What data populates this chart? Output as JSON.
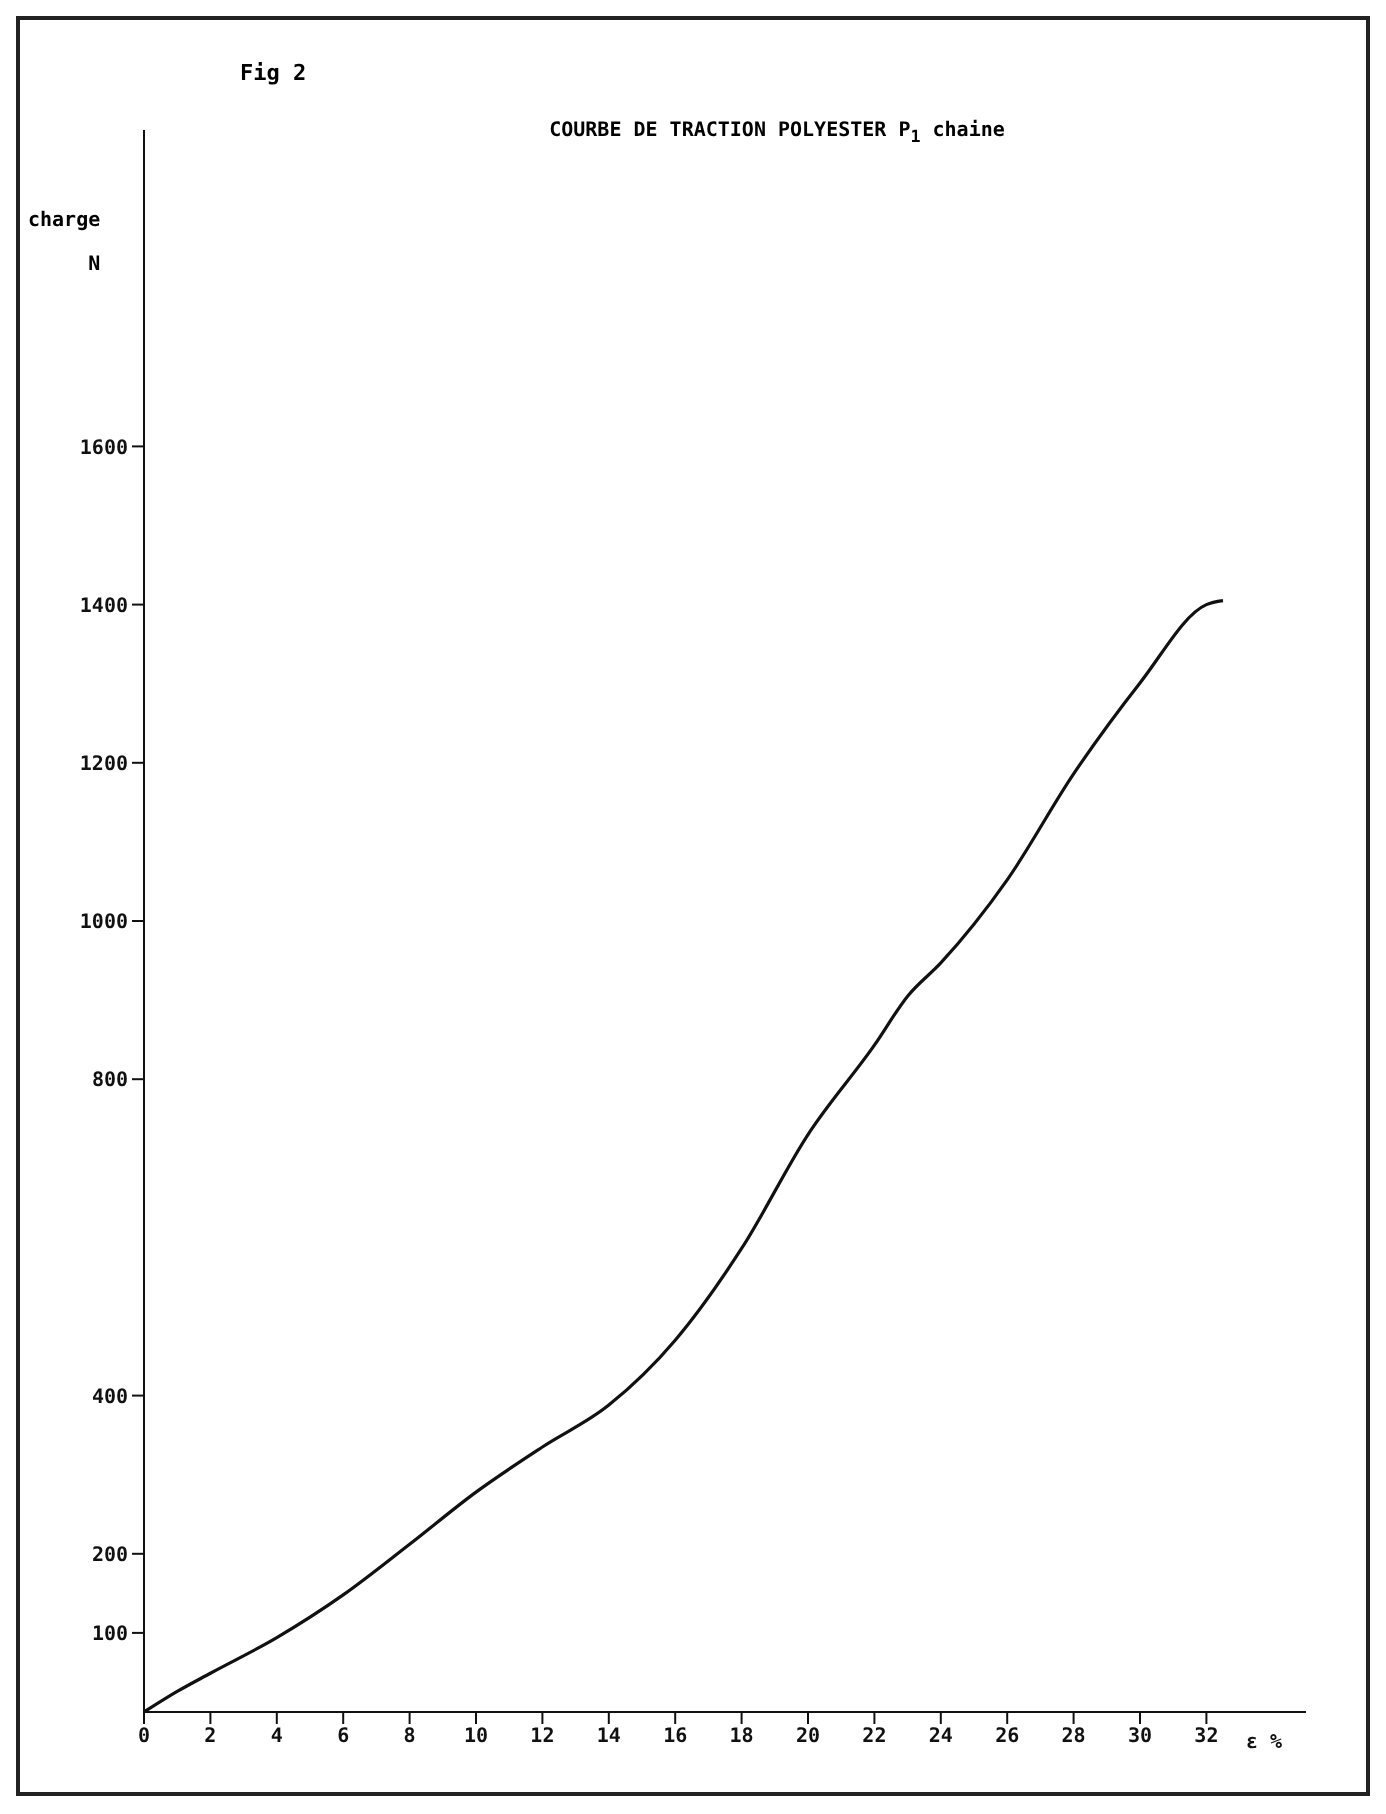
{
  "chart_data": {
    "type": "line",
    "title": "COURBE DE TRACTION POLYESTER P$_{1}$ chaine",
    "xlabel": "ε %",
    "ylabel": "charge N",
    "annotations": [
      "Fig 2"
    ],
    "x": [
      0,
      1,
      2,
      4,
      6,
      8,
      10,
      12,
      14,
      16,
      18,
      20,
      22,
      23,
      24,
      26,
      28,
      30,
      32,
      32.5
    ],
    "series": [
      {
        "color": "#111111",
        "values": [
          0,
          26,
          49,
          94,
          148,
          212,
          278,
          335,
          388,
          470,
          586,
          730,
          843,
          905,
          947,
          1052,
          1186,
          1301,
          1400,
          1405
        ]
      }
    ],
    "xlim": [
      0,
      35
    ],
    "xticks": [
      0,
      2,
      4,
      6,
      8,
      10,
      12,
      14,
      16,
      18,
      20,
      22,
      24,
      26,
      28,
      30,
      32
    ],
    "ylim": [
      0,
      2000
    ],
    "yticks": [
      100,
      200,
      400,
      800,
      1000,
      1200,
      1400,
      1600
    ],
    "grid": false,
    "legend": false,
    "marker": "none",
    "line_style": "solid"
  }
}
